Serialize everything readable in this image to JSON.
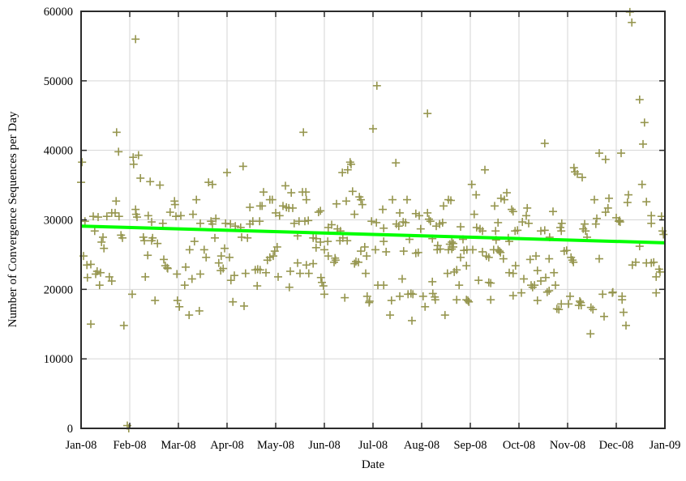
{
  "page": {
    "background": "#ffffff"
  },
  "colors": {
    "plot_background": "#ffffff",
    "grid": "#d6d6d6",
    "border": "#2b2b2b",
    "text": "#000000",
    "marker": "#96964f",
    "trend": "#00ff00"
  },
  "chart_data": {
    "type": "scatter",
    "title": "",
    "xlabel": "Date",
    "ylabel": "Number of Convergence Sequences per Day",
    "legend": "none",
    "grid": true,
    "x_ticks": [
      "Jan-08",
      "Feb-08",
      "Mar-08",
      "Apr-08",
      "May-08",
      "Jun-08",
      "Jul-08",
      "Aug-08",
      "Sep-08",
      "Oct-08",
      "Nov-08",
      "Dec-08",
      "Jan-09"
    ],
    "y_ticks": [
      0,
      10000,
      20000,
      30000,
      40000,
      50000,
      60000
    ],
    "xlim_months": [
      0,
      12
    ],
    "ylim": [
      0,
      60000
    ],
    "marker": {
      "shape": "plus",
      "size": 10,
      "color": "#96964f"
    },
    "trend_line": {
      "color": "#00ff00",
      "width": 4,
      "start_value": 29100,
      "end_value": 26700
    },
    "points_format": "[months_since_Jan-08, sequences_per_day]",
    "points": [
      [
        0.0,
        35400
      ],
      [
        0.02,
        38300
      ],
      [
        0.05,
        24800
      ],
      [
        0.08,
        29800
      ],
      [
        0.12,
        23500
      ],
      [
        0.13,
        21700
      ],
      [
        0.2,
        23600
      ],
      [
        0.2,
        15000
      ],
      [
        0.25,
        30500
      ],
      [
        0.28,
        28400
      ],
      [
        0.3,
        22200
      ],
      [
        0.33,
        22600
      ],
      [
        0.35,
        30400
      ],
      [
        0.38,
        20600
      ],
      [
        0.4,
        22400
      ],
      [
        0.42,
        26800
      ],
      [
        0.45,
        27500
      ],
      [
        0.47,
        25900
      ],
      [
        0.53,
        30500
      ],
      [
        0.58,
        21800
      ],
      [
        0.63,
        31000
      ],
      [
        0.63,
        21200
      ],
      [
        0.7,
        31000
      ],
      [
        0.72,
        32700
      ],
      [
        0.73,
        42600
      ],
      [
        0.77,
        39800
      ],
      [
        0.78,
        30500
      ],
      [
        0.82,
        27800
      ],
      [
        0.85,
        27400
      ],
      [
        0.88,
        14800
      ],
      [
        0.95,
        400
      ],
      [
        0.98,
        0
      ],
      [
        1.05,
        19300
      ],
      [
        1.07,
        39000
      ],
      [
        1.08,
        38000
      ],
      [
        1.12,
        56000
      ],
      [
        1.12,
        31500
      ],
      [
        1.13,
        30800
      ],
      [
        1.15,
        30400
      ],
      [
        1.18,
        39300
      ],
      [
        1.22,
        36000
      ],
      [
        1.28,
        27500
      ],
      [
        1.3,
        27000
      ],
      [
        1.32,
        21800
      ],
      [
        1.37,
        24900
      ],
      [
        1.38,
        30600
      ],
      [
        1.42,
        35500
      ],
      [
        1.45,
        29700
      ],
      [
        1.45,
        27000
      ],
      [
        1.47,
        27400
      ],
      [
        1.52,
        18400
      ],
      [
        1.57,
        26600
      ],
      [
        1.62,
        35000
      ],
      [
        1.68,
        29500
      ],
      [
        1.7,
        24300
      ],
      [
        1.73,
        23400
      ],
      [
        1.77,
        23100
      ],
      [
        1.78,
        23000
      ],
      [
        1.83,
        31100
      ],
      [
        1.92,
        32700
      ],
      [
        1.93,
        32200
      ],
      [
        1.95,
        30500
      ],
      [
        1.97,
        22200
      ],
      [
        1.98,
        18400
      ],
      [
        2.02,
        17500
      ],
      [
        2.05,
        30600
      ],
      [
        2.13,
        20600
      ],
      [
        2.15,
        23200
      ],
      [
        2.22,
        16300
      ],
      [
        2.23,
        25700
      ],
      [
        2.28,
        21500
      ],
      [
        2.3,
        30800
      ],
      [
        2.33,
        26900
      ],
      [
        2.37,
        32900
      ],
      [
        2.43,
        16900
      ],
      [
        2.45,
        29500
      ],
      [
        2.45,
        22200
      ],
      [
        2.53,
        25700
      ],
      [
        2.57,
        24600
      ],
      [
        2.62,
        35400
      ],
      [
        2.67,
        29800
      ],
      [
        2.7,
        35100
      ],
      [
        2.7,
        29400
      ],
      [
        2.75,
        27400
      ],
      [
        2.77,
        30200
      ],
      [
        2.83,
        23800
      ],
      [
        2.87,
        22700
      ],
      [
        2.88,
        24800
      ],
      [
        2.92,
        23000
      ],
      [
        2.95,
        25900
      ],
      [
        2.97,
        29500
      ],
      [
        3.0,
        36800
      ],
      [
        3.05,
        24600
      ],
      [
        3.07,
        29400
      ],
      [
        3.08,
        21300
      ],
      [
        3.12,
        18200
      ],
      [
        3.15,
        22000
      ],
      [
        3.17,
        29100
      ],
      [
        3.28,
        28900
      ],
      [
        3.3,
        27500
      ],
      [
        3.33,
        37700
      ],
      [
        3.35,
        17600
      ],
      [
        3.38,
        22300
      ],
      [
        3.42,
        27400
      ],
      [
        3.47,
        31800
      ],
      [
        3.47,
        29400
      ],
      [
        3.53,
        29800
      ],
      [
        3.58,
        22800
      ],
      [
        3.62,
        20500
      ],
      [
        3.63,
        22900
      ],
      [
        3.67,
        29800
      ],
      [
        3.68,
        32000
      ],
      [
        3.68,
        22800
      ],
      [
        3.72,
        32000
      ],
      [
        3.75,
        34000
      ],
      [
        3.8,
        22400
      ],
      [
        3.83,
        24200
      ],
      [
        3.88,
        32900
      ],
      [
        3.88,
        24600
      ],
      [
        3.93,
        32900
      ],
      [
        3.95,
        24800
      ],
      [
        3.98,
        25500
      ],
      [
        4.0,
        31000
      ],
      [
        4.03,
        26100
      ],
      [
        4.05,
        21800
      ],
      [
        4.08,
        30600
      ],
      [
        4.15,
        32000
      ],
      [
        4.2,
        34900
      ],
      [
        4.22,
        31800
      ],
      [
        4.27,
        31700
      ],
      [
        4.28,
        20300
      ],
      [
        4.3,
        22600
      ],
      [
        4.32,
        33900
      ],
      [
        4.35,
        31700
      ],
      [
        4.38,
        29500
      ],
      [
        4.45,
        27700
      ],
      [
        4.45,
        23800
      ],
      [
        4.48,
        29800
      ],
      [
        4.5,
        22300
      ],
      [
        4.55,
        34000
      ],
      [
        4.57,
        42600
      ],
      [
        4.6,
        29800
      ],
      [
        4.62,
        34000
      ],
      [
        4.63,
        32900
      ],
      [
        4.63,
        23500
      ],
      [
        4.67,
        29900
      ],
      [
        4.68,
        22300
      ],
      [
        4.77,
        27400
      ],
      [
        4.77,
        23700
      ],
      [
        4.83,
        27300
      ],
      [
        4.83,
        26000
      ],
      [
        4.88,
        31100
      ],
      [
        4.92,
        31300
      ],
      [
        4.92,
        26800
      ],
      [
        4.93,
        21700
      ],
      [
        4.95,
        21000
      ],
      [
        4.98,
        20500
      ],
      [
        5.0,
        19300
      ],
      [
        5.0,
        25700
      ],
      [
        5.07,
        26900
      ],
      [
        5.08,
        28900
      ],
      [
        5.08,
        24800
      ],
      [
        5.15,
        29300
      ],
      [
        5.2,
        23900
      ],
      [
        5.22,
        24500
      ],
      [
        5.23,
        24200
      ],
      [
        5.25,
        32300
      ],
      [
        5.27,
        28700
      ],
      [
        5.32,
        27000
      ],
      [
        5.33,
        28400
      ],
      [
        5.37,
        36800
      ],
      [
        5.38,
        27400
      ],
      [
        5.42,
        18800
      ],
      [
        5.45,
        32700
      ],
      [
        5.47,
        27000
      ],
      [
        5.48,
        37200
      ],
      [
        5.53,
        38300
      ],
      [
        5.55,
        38000
      ],
      [
        5.58,
        34100
      ],
      [
        5.62,
        30800
      ],
      [
        5.62,
        23700
      ],
      [
        5.65,
        24000
      ],
      [
        5.7,
        23900
      ],
      [
        5.72,
        33300
      ],
      [
        5.75,
        32900
      ],
      [
        5.75,
        25500
      ],
      [
        5.78,
        32200
      ],
      [
        5.83,
        26100
      ],
      [
        5.85,
        22300
      ],
      [
        5.87,
        24800
      ],
      [
        5.88,
        19000
      ],
      [
        5.92,
        18100
      ],
      [
        5.93,
        18300
      ],
      [
        5.97,
        29800
      ],
      [
        6.0,
        43100
      ],
      [
        6.05,
        25700
      ],
      [
        6.07,
        29600
      ],
      [
        6.08,
        49300
      ],
      [
        6.1,
        20600
      ],
      [
        6.2,
        31500
      ],
      [
        6.22,
        28800
      ],
      [
        6.22,
        26900
      ],
      [
        6.22,
        20600
      ],
      [
        6.27,
        25400
      ],
      [
        6.35,
        16300
      ],
      [
        6.38,
        18400
      ],
      [
        6.4,
        32900
      ],
      [
        6.47,
        38200
      ],
      [
        6.48,
        29400
      ],
      [
        6.53,
        29100
      ],
      [
        6.55,
        31000
      ],
      [
        6.55,
        19000
      ],
      [
        6.6,
        21500
      ],
      [
        6.62,
        29700
      ],
      [
        6.63,
        25500
      ],
      [
        6.67,
        29600
      ],
      [
        6.7,
        32900
      ],
      [
        6.72,
        19300
      ],
      [
        6.75,
        27200
      ],
      [
        6.78,
        19400
      ],
      [
        6.8,
        15500
      ],
      [
        6.82,
        19300
      ],
      [
        6.88,
        30900
      ],
      [
        6.88,
        25200
      ],
      [
        6.93,
        25300
      ],
      [
        6.95,
        30600
      ],
      [
        6.98,
        28700
      ],
      [
        7.03,
        19000
      ],
      [
        7.07,
        17500
      ],
      [
        7.12,
        45300
      ],
      [
        7.12,
        31000
      ],
      [
        7.15,
        30100
      ],
      [
        7.18,
        29800
      ],
      [
        7.22,
        27300
      ],
      [
        7.22,
        21100
      ],
      [
        7.23,
        19400
      ],
      [
        7.27,
        18900
      ],
      [
        7.28,
        18500
      ],
      [
        7.3,
        29100
      ],
      [
        7.32,
        25700
      ],
      [
        7.33,
        26300
      ],
      [
        7.37,
        29400
      ],
      [
        7.38,
        25800
      ],
      [
        7.43,
        29600
      ],
      [
        7.45,
        32000
      ],
      [
        7.48,
        16300
      ],
      [
        7.53,
        22300
      ],
      [
        7.55,
        32900
      ],
      [
        7.55,
        25700
      ],
      [
        7.58,
        26500
      ],
      [
        7.6,
        32800
      ],
      [
        7.62,
        26800
      ],
      [
        7.62,
        25800
      ],
      [
        7.65,
        26600
      ],
      [
        7.65,
        26100
      ],
      [
        7.67,
        22500
      ],
      [
        7.72,
        22800
      ],
      [
        7.72,
        18500
      ],
      [
        7.77,
        20600
      ],
      [
        7.8,
        29000
      ],
      [
        7.8,
        24600
      ],
      [
        7.85,
        27200
      ],
      [
        7.87,
        25600
      ],
      [
        7.92,
        23400
      ],
      [
        7.92,
        18500
      ],
      [
        7.93,
        25700
      ],
      [
        7.95,
        18400
      ],
      [
        7.97,
        18200
      ],
      [
        8.03,
        35100
      ],
      [
        8.05,
        25700
      ],
      [
        8.08,
        30800
      ],
      [
        8.12,
        33600
      ],
      [
        8.13,
        28900
      ],
      [
        8.17,
        21300
      ],
      [
        8.2,
        28700
      ],
      [
        8.25,
        28400
      ],
      [
        8.25,
        25400
      ],
      [
        8.3,
        37200
      ],
      [
        8.33,
        24800
      ],
      [
        8.38,
        24600
      ],
      [
        8.38,
        21000
      ],
      [
        8.42,
        20900
      ],
      [
        8.42,
        18500
      ],
      [
        8.48,
        25700
      ],
      [
        8.5,
        32000
      ],
      [
        8.52,
        28400
      ],
      [
        8.53,
        27100
      ],
      [
        8.57,
        29600
      ],
      [
        8.57,
        25700
      ],
      [
        8.6,
        25500
      ],
      [
        8.62,
        25300
      ],
      [
        8.63,
        33100
      ],
      [
        8.68,
        24400
      ],
      [
        8.7,
        32900
      ],
      [
        8.75,
        33900
      ],
      [
        8.78,
        27400
      ],
      [
        8.8,
        26900
      ],
      [
        8.8,
        22400
      ],
      [
        8.85,
        31500
      ],
      [
        8.88,
        31200
      ],
      [
        8.88,
        22300
      ],
      [
        8.88,
        19100
      ],
      [
        8.92,
        28400
      ],
      [
        8.93,
        23400
      ],
      [
        8.97,
        28500
      ],
      [
        9.05,
        19500
      ],
      [
        9.07,
        29700
      ],
      [
        9.1,
        21500
      ],
      [
        9.15,
        30600
      ],
      [
        9.17,
        31700
      ],
      [
        9.2,
        29500
      ],
      [
        9.23,
        24300
      ],
      [
        9.25,
        20600
      ],
      [
        9.28,
        20300
      ],
      [
        9.32,
        20600
      ],
      [
        9.35,
        24800
      ],
      [
        9.38,
        22700
      ],
      [
        9.38,
        18400
      ],
      [
        9.45,
        28400
      ],
      [
        9.45,
        21200
      ],
      [
        9.53,
        41000
      ],
      [
        9.53,
        28500
      ],
      [
        9.55,
        21700
      ],
      [
        9.58,
        19600
      ],
      [
        9.62,
        24400
      ],
      [
        9.62,
        19800
      ],
      [
        9.63,
        27500
      ],
      [
        9.7,
        31200
      ],
      [
        9.72,
        22400
      ],
      [
        9.75,
        20600
      ],
      [
        9.78,
        17200
      ],
      [
        9.82,
        17100
      ],
      [
        9.85,
        28900
      ],
      [
        9.87,
        28400
      ],
      [
        9.87,
        17900
      ],
      [
        9.88,
        29500
      ],
      [
        9.93,
        25500
      ],
      [
        9.98,
        25600
      ],
      [
        10.02,
        17900
      ],
      [
        10.05,
        19000
      ],
      [
        10.07,
        24600
      ],
      [
        10.1,
        24200
      ],
      [
        10.12,
        23900
      ],
      [
        10.13,
        37500
      ],
      [
        10.15,
        36900
      ],
      [
        10.2,
        36600
      ],
      [
        10.23,
        17700
      ],
      [
        10.25,
        18300
      ],
      [
        10.27,
        18100
      ],
      [
        10.28,
        17700
      ],
      [
        10.3,
        36100
      ],
      [
        10.32,
        28700
      ],
      [
        10.35,
        29400
      ],
      [
        10.37,
        28400
      ],
      [
        10.4,
        27500
      ],
      [
        10.47,
        13600
      ],
      [
        10.48,
        17400
      ],
      [
        10.52,
        17100
      ],
      [
        10.55,
        32900
      ],
      [
        10.58,
        29400
      ],
      [
        10.6,
        30200
      ],
      [
        10.65,
        39600
      ],
      [
        10.65,
        24400
      ],
      [
        10.72,
        19300
      ],
      [
        10.75,
        16100
      ],
      [
        10.78,
        38700
      ],
      [
        10.78,
        31100
      ],
      [
        10.83,
        31700
      ],
      [
        10.85,
        33100
      ],
      [
        10.92,
        19500
      ],
      [
        10.93,
        19600
      ],
      [
        11.0,
        30300
      ],
      [
        11.05,
        29800
      ],
      [
        11.07,
        29900
      ],
      [
        11.08,
        29700
      ],
      [
        11.1,
        39600
      ],
      [
        11.12,
        19000
      ],
      [
        11.12,
        18500
      ],
      [
        11.15,
        16700
      ],
      [
        11.2,
        14800
      ],
      [
        11.23,
        32500
      ],
      [
        11.25,
        33600
      ],
      [
        11.28,
        59900
      ],
      [
        11.32,
        58400
      ],
      [
        11.33,
        23500
      ],
      [
        11.4,
        23900
      ],
      [
        11.48,
        47300
      ],
      [
        11.48,
        26200
      ],
      [
        11.53,
        35100
      ],
      [
        11.55,
        40900
      ],
      [
        11.58,
        44000
      ],
      [
        11.62,
        32600
      ],
      [
        11.62,
        23800
      ],
      [
        11.72,
        30600
      ],
      [
        11.72,
        29500
      ],
      [
        11.72,
        23800
      ],
      [
        11.77,
        23900
      ],
      [
        11.82,
        21800
      ],
      [
        11.82,
        19500
      ],
      [
        11.88,
        22900
      ],
      [
        11.9,
        22500
      ],
      [
        11.93,
        30500
      ],
      [
        11.95,
        28400
      ],
      [
        11.97,
        27900
      ]
    ]
  }
}
